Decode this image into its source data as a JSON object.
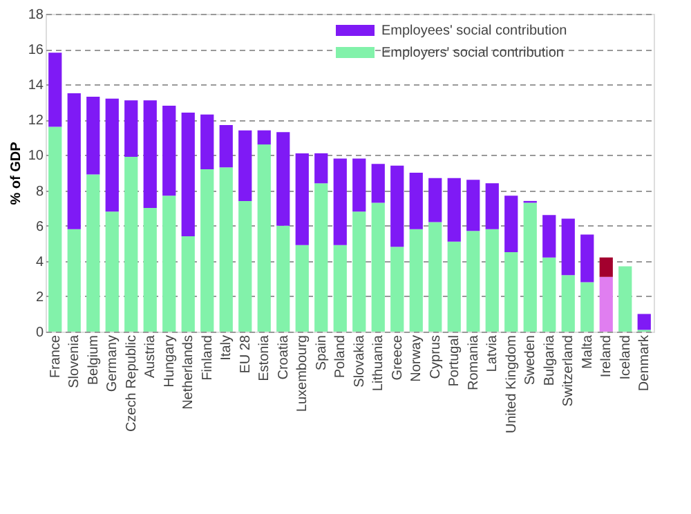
{
  "chart_data": {
    "type": "bar",
    "stacked": true,
    "ylabel": "% of GDP",
    "categories": [
      "France",
      "Slovenia",
      "Belgium",
      "Germany",
      "Czech Republic",
      "Austria",
      "Hungary",
      "Netherlands",
      "Finland",
      "Italy",
      "EU 28",
      "Estonia",
      "Croatia",
      "Luxembourg",
      "Spain",
      "Poland",
      "Slovakia",
      "Lithuania",
      "Greece",
      "Norway",
      "Cyprus",
      "Portugal",
      "Romania",
      "Latvia",
      "United Kingdom",
      "Sweden",
      "Bulgaria",
      "Switzerland",
      "Malta",
      "Ireland",
      "Iceland",
      "Denmark"
    ],
    "series": [
      {
        "name": "Employers' social contribution",
        "color": "#82f2aa",
        "colors": [
          "#82f2aa",
          "#82f2aa",
          "#82f2aa",
          "#82f2aa",
          "#82f2aa",
          "#82f2aa",
          "#82f2aa",
          "#82f2aa",
          "#82f2aa",
          "#82f2aa",
          "#82f2aa",
          "#82f2aa",
          "#82f2aa",
          "#82f2aa",
          "#82f2aa",
          "#82f2aa",
          "#82f2aa",
          "#82f2aa",
          "#82f2aa",
          "#82f2aa",
          "#82f2aa",
          "#82f2aa",
          "#82f2aa",
          "#82f2aa",
          "#82f2aa",
          "#82f2aa",
          "#82f2aa",
          "#82f2aa",
          "#82f2aa",
          "#e07ef0",
          "#82f2aa",
          "#82f2aa"
        ],
        "values": [
          11.6,
          5.8,
          8.9,
          6.8,
          9.9,
          7.0,
          7.7,
          5.4,
          9.2,
          9.3,
          7.4,
          10.6,
          6.0,
          4.9,
          8.4,
          4.9,
          6.8,
          7.3,
          4.8,
          5.8,
          6.2,
          5.1,
          5.7,
          5.8,
          4.5,
          7.3,
          4.2,
          3.2,
          2.8,
          3.1,
          3.7,
          0.1
        ]
      },
      {
        "name": "Employees' social contribution",
        "color": "#7f1af5",
        "colors": [
          "#7f1af5",
          "#7f1af5",
          "#7f1af5",
          "#7f1af5",
          "#7f1af5",
          "#7f1af5",
          "#7f1af5",
          "#7f1af5",
          "#7f1af5",
          "#7f1af5",
          "#7f1af5",
          "#7f1af5",
          "#7f1af5",
          "#7f1af5",
          "#7f1af5",
          "#7f1af5",
          "#7f1af5",
          "#7f1af5",
          "#7f1af5",
          "#7f1af5",
          "#7f1af5",
          "#7f1af5",
          "#7f1af5",
          "#7f1af5",
          "#7f1af5",
          "#7f1af5",
          "#7f1af5",
          "#7f1af5",
          "#7f1af5",
          "#a3002e",
          "#7f1af5",
          "#7f1af5"
        ],
        "values": [
          4.2,
          7.7,
          4.4,
          6.4,
          3.2,
          6.1,
          5.1,
          7.0,
          3.1,
          2.4,
          4.0,
          0.8,
          5.3,
          5.2,
          1.7,
          4.9,
          3.0,
          2.2,
          4.6,
          3.2,
          2.5,
          3.6,
          2.9,
          2.6,
          3.2,
          0.1,
          2.4,
          3.2,
          2.7,
          1.1,
          0.0,
          0.9
        ]
      }
    ],
    "ylim": [
      0,
      18
    ],
    "yticks": [
      0,
      2,
      4,
      6,
      8,
      10,
      12,
      14,
      16,
      18
    ],
    "grid": "y",
    "legend": "top right"
  }
}
